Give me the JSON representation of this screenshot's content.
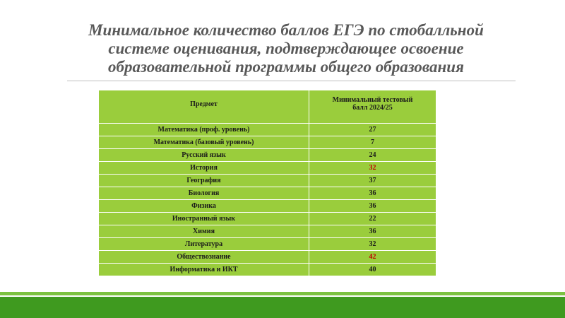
{
  "slide": {
    "title_lines": [
      "Минимальное количество баллов ЕГЭ по стобалльной",
      "системе оценивания, подтверждающее освоение",
      "образовательной программы общего образования"
    ]
  },
  "table": {
    "headers": {
      "subject": "Предмет",
      "score_line1": "Минимальный тестовый",
      "score_line2": "балл 2024/25"
    },
    "rows": [
      {
        "subject": "Математика (проф. уровень)",
        "score": "27",
        "highlight": false
      },
      {
        "subject": "Математика (базовый уровень)",
        "score": "7",
        "highlight": false
      },
      {
        "subject": "Русский язык",
        "score": "24",
        "highlight": false
      },
      {
        "subject": "История",
        "score": "32",
        "highlight": true
      },
      {
        "subject": "География",
        "score": "37",
        "highlight": false
      },
      {
        "subject": "Биология",
        "score": "36",
        "highlight": false
      },
      {
        "subject": "Физика",
        "score": "36",
        "highlight": false
      },
      {
        "subject": "Иностранный язык",
        "score": "22",
        "highlight": false
      },
      {
        "subject": "Химия",
        "score": "36",
        "highlight": false
      },
      {
        "subject": "Литература",
        "score": "32",
        "highlight": false
      },
      {
        "subject": "Обществознание",
        "score": "42",
        "highlight": true
      },
      {
        "subject": "Информатика и ИКТ",
        "score": "40",
        "highlight": false
      }
    ]
  },
  "colors": {
    "cell_green": "#9acd3c",
    "highlight_red": "#c00000",
    "title_gray": "#595959",
    "bar_light_green": "#7cc241",
    "bar_dark_green": "#3f9a1f"
  }
}
